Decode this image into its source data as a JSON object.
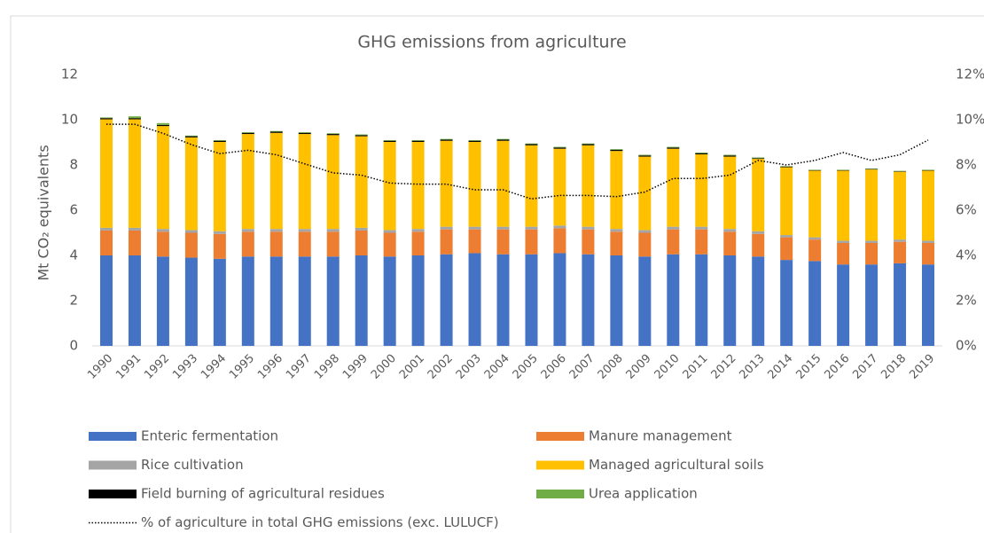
{
  "chart_data": {
    "type": "bar",
    "stacked": true,
    "title": "GHG emissions from agriculture",
    "ylabel": "Mt CO₂ equivalents",
    "categories": [
      "1990",
      "1991",
      "1992",
      "1993",
      "1994",
      "1995",
      "1996",
      "1997",
      "1998",
      "1999",
      "2000",
      "2001",
      "2002",
      "2003",
      "2004",
      "2005",
      "2006",
      "2007",
      "2008",
      "2009",
      "2010",
      "2011",
      "2012",
      "2013",
      "2014",
      "2015",
      "2016",
      "2017",
      "2018",
      "2019"
    ],
    "series": [
      {
        "name": "Enteric fermentation",
        "color": "#4472c4",
        "values": [
          4.0,
          4.0,
          3.95,
          3.9,
          3.85,
          3.95,
          3.95,
          3.95,
          3.95,
          4.0,
          3.95,
          4.0,
          4.05,
          4.1,
          4.05,
          4.05,
          4.1,
          4.05,
          4.0,
          3.95,
          4.05,
          4.05,
          4.0,
          3.95,
          3.8,
          3.75,
          3.6,
          3.6,
          3.65,
          3.6
        ]
      },
      {
        "name": "Manure management",
        "color": "#ed7d31",
        "values": [
          1.1,
          1.1,
          1.1,
          1.1,
          1.1,
          1.1,
          1.1,
          1.1,
          1.1,
          1.1,
          1.05,
          1.05,
          1.1,
          1.05,
          1.1,
          1.1,
          1.1,
          1.1,
          1.05,
          1.05,
          1.1,
          1.1,
          1.05,
          1.0,
          1.0,
          0.95,
          0.95,
          0.95,
          0.95,
          0.95
        ]
      },
      {
        "name": "Rice cultivation",
        "color": "#a5a5a5",
        "values": [
          0.12,
          0.12,
          0.12,
          0.12,
          0.12,
          0.12,
          0.12,
          0.12,
          0.12,
          0.12,
          0.12,
          0.12,
          0.12,
          0.12,
          0.12,
          0.12,
          0.12,
          0.12,
          0.12,
          0.12,
          0.12,
          0.12,
          0.12,
          0.12,
          0.1,
          0.1,
          0.1,
          0.1,
          0.1,
          0.1
        ]
      },
      {
        "name": "Managed agricultural soils",
        "color": "#ffc000",
        "values": [
          4.8,
          4.8,
          4.55,
          4.1,
          3.95,
          4.2,
          4.25,
          4.2,
          4.15,
          4.05,
          3.9,
          3.85,
          3.8,
          3.75,
          3.8,
          3.6,
          3.4,
          3.6,
          3.45,
          3.25,
          3.45,
          3.2,
          3.2,
          3.2,
          3.0,
          2.95,
          3.1,
          3.15,
          3.0,
          3.1
        ]
      },
      {
        "name": "Field burning of agricultural residues",
        "color": "#000000",
        "values": [
          0.05,
          0.05,
          0.05,
          0.05,
          0.05,
          0.05,
          0.05,
          0.05,
          0.05,
          0.05,
          0.05,
          0.05,
          0.05,
          0.05,
          0.05,
          0.05,
          0.05,
          0.05,
          0.05,
          0.05,
          0.05,
          0.05,
          0.05,
          0.03,
          0.03,
          0.02,
          0.02,
          0.02,
          0.02,
          0.02
        ]
      },
      {
        "name": "Urea application",
        "color": "#70ad47",
        "values": [
          0.03,
          0.08,
          0.08,
          0.03,
          0.03,
          0.03,
          0.03,
          0.03,
          0.03,
          0.03,
          0.03,
          0.03,
          0.03,
          0.03,
          0.03,
          0.03,
          0.03,
          0.03,
          0.03,
          0.03,
          0.03,
          0.03,
          0.03,
          0.03,
          0.02,
          0.02,
          0.02,
          0.02,
          0.02,
          0.02
        ]
      },
      {
        "name": "% of agriculture in total GHG emissions (exc. LULUCF)",
        "color": "#000000",
        "axis": "y2",
        "dash": "dotted",
        "values": [
          9.8,
          9.8,
          9.4,
          8.9,
          8.5,
          8.65,
          8.45,
          8.05,
          7.65,
          7.55,
          7.2,
          7.15,
          7.15,
          6.9,
          6.9,
          6.5,
          6.65,
          6.65,
          6.6,
          6.8,
          7.4,
          7.4,
          7.55,
          8.2,
          8.0,
          8.2,
          8.55,
          8.2,
          8.45,
          9.1
        ]
      }
    ],
    "ylim": [
      0,
      12
    ],
    "yticks": [
      0,
      2,
      4,
      6,
      8,
      10,
      12
    ],
    "y2lim": [
      0,
      12
    ],
    "y2ticks": [
      {
        "value": 0,
        "label": "0%"
      },
      {
        "value": 2,
        "label": "2%"
      },
      {
        "value": 4,
        "label": "4%"
      },
      {
        "value": 6,
        "label": "6%"
      },
      {
        "value": 8,
        "label": "8%"
      },
      {
        "value": 10,
        "label": "10%"
      },
      {
        "value": 12,
        "label": "12%"
      }
    ],
    "grid": false
  }
}
